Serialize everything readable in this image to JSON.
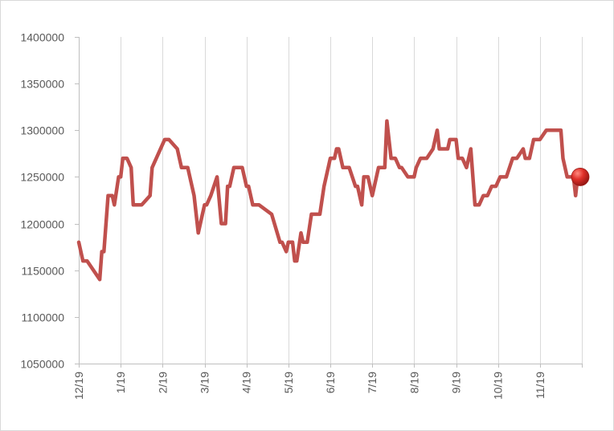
{
  "chart_data": {
    "type": "line",
    "title": "",
    "xlabel": "",
    "ylabel": "",
    "ylim": [
      1050000,
      1400000
    ],
    "yticks": [
      1400000,
      1350000,
      1300000,
      1250000,
      1200000,
      1150000,
      1100000,
      1050000
    ],
    "xtick_labels": [
      "12/19",
      "1/19",
      "2/19",
      "3/19",
      "4/19",
      "5/19",
      "6/19",
      "7/19",
      "8/19",
      "9/19",
      "10/19",
      "11/19"
    ],
    "grid": "vertical",
    "series": [
      {
        "color": "#c0504d",
        "marker_color": "#e0302a",
        "x": [
          0.0,
          0.1,
          0.2,
          0.5,
          0.55,
          0.6,
          0.7,
          0.8,
          0.85,
          0.95,
          1.0,
          1.05,
          1.15,
          1.25,
          1.3,
          1.35,
          1.5,
          1.7,
          1.75,
          2.05,
          2.1,
          2.15,
          2.35,
          2.45,
          2.6,
          2.75,
          2.85,
          2.95,
          3.0,
          3.05,
          3.15,
          3.3,
          3.4,
          3.5,
          3.55,
          3.6,
          3.7,
          3.75,
          3.9,
          4.0,
          4.05,
          4.15,
          4.25,
          4.3,
          4.6,
          4.8,
          4.85,
          4.95,
          5.0,
          5.1,
          5.15,
          5.2,
          5.3,
          5.35,
          5.4,
          5.45,
          5.55,
          5.6,
          5.75,
          5.85,
          6.0,
          6.1,
          6.15,
          6.2,
          6.3,
          6.45,
          6.6,
          6.65,
          6.75,
          6.8,
          6.9,
          7.0,
          7.05,
          7.15,
          7.3,
          7.35,
          7.45,
          7.55,
          7.65,
          7.7,
          7.85,
          8.0,
          8.05,
          8.15,
          8.3,
          8.45,
          8.55,
          8.6,
          8.65,
          8.8,
          8.85,
          9.0,
          9.05,
          9.15,
          9.25,
          9.35,
          9.45,
          9.55,
          9.65,
          9.75,
          9.85,
          9.95,
          10.05,
          10.2,
          10.35,
          10.45,
          10.6,
          10.65,
          10.75,
          10.85,
          11.0,
          11.15,
          11.25,
          11.5,
          11.55,
          11.65,
          11.75,
          11.8,
          11.85,
          11.9,
          12.0
        ],
        "values": [
          1180000,
          1160000,
          1160000,
          1140000,
          1170000,
          1170000,
          1230000,
          1230000,
          1220000,
          1250000,
          1250000,
          1270000,
          1270000,
          1260000,
          1220000,
          1220000,
          1220000,
          1230000,
          1260000,
          1290000,
          1290000,
          1290000,
          1280000,
          1260000,
          1260000,
          1230000,
          1190000,
          1210000,
          1220000,
          1220000,
          1230000,
          1250000,
          1200000,
          1200000,
          1240000,
          1240000,
          1260000,
          1260000,
          1260000,
          1240000,
          1240000,
          1220000,
          1220000,
          1220000,
          1210000,
          1180000,
          1180000,
          1170000,
          1180000,
          1180000,
          1160000,
          1160000,
          1190000,
          1180000,
          1180000,
          1180000,
          1210000,
          1210000,
          1210000,
          1240000,
          1270000,
          1270000,
          1280000,
          1280000,
          1260000,
          1260000,
          1240000,
          1240000,
          1220000,
          1250000,
          1250000,
          1230000,
          1240000,
          1260000,
          1260000,
          1310000,
          1270000,
          1270000,
          1260000,
          1260000,
          1250000,
          1250000,
          1260000,
          1270000,
          1270000,
          1280000,
          1300000,
          1280000,
          1280000,
          1280000,
          1290000,
          1290000,
          1270000,
          1270000,
          1260000,
          1280000,
          1220000,
          1220000,
          1230000,
          1230000,
          1240000,
          1240000,
          1250000,
          1250000,
          1270000,
          1270000,
          1280000,
          1270000,
          1270000,
          1290000,
          1290000,
          1300000,
          1300000,
          1300000,
          1270000,
          1250000,
          1250000,
          1250000,
          1230000,
          1250000,
          1250000
        ],
        "end_marker": true
      }
    ]
  }
}
